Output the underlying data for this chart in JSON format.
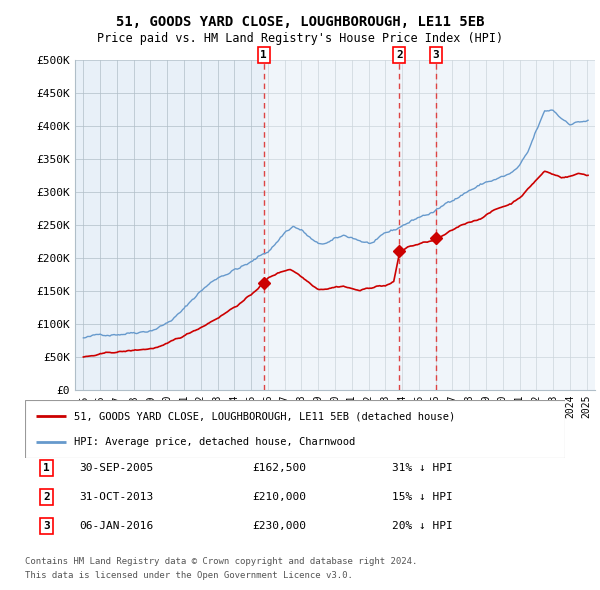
{
  "title": "51, GOODS YARD CLOSE, LOUGHBOROUGH, LE11 5EB",
  "subtitle": "Price paid vs. HM Land Registry's House Price Index (HPI)",
  "legend_label_red": "51, GOODS YARD CLOSE, LOUGHBOROUGH, LE11 5EB (detached house)",
  "legend_label_blue": "HPI: Average price, detached house, Charnwood",
  "footer_line1": "Contains HM Land Registry data © Crown copyright and database right 2024.",
  "footer_line2": "This data is licensed under the Open Government Licence v3.0.",
  "transactions": [
    {
      "num": 1,
      "date": "30-SEP-2005",
      "price": 162500,
      "price_str": "£162,500",
      "pct": "31%",
      "year": 2005.75
    },
    {
      "num": 2,
      "date": "31-OCT-2013",
      "price": 210000,
      "price_str": "£210,000",
      "pct": "15%",
      "year": 2013.833
    },
    {
      "num": 3,
      "date": "06-JAN-2016",
      "price": 230000,
      "price_str": "£230,000",
      "pct": "20%",
      "year": 2016.02
    }
  ],
  "ylim": [
    0,
    500000
  ],
  "yticks": [
    0,
    50000,
    100000,
    150000,
    200000,
    250000,
    300000,
    350000,
    400000,
    450000,
    500000
  ],
  "ytick_labels": [
    "£0",
    "£50K",
    "£100K",
    "£150K",
    "£200K",
    "£250K",
    "£300K",
    "£350K",
    "£400K",
    "£450K",
    "£500K"
  ],
  "xlim_start": 1994.5,
  "xlim_end": 2025.5,
  "color_red": "#cc0000",
  "color_blue": "#6699cc",
  "color_bg": "#e8f0f8",
  "color_grid": "#b0bec8",
  "color_dashed": "#dd4444",
  "color_shaded_overlay": "#ffffff"
}
